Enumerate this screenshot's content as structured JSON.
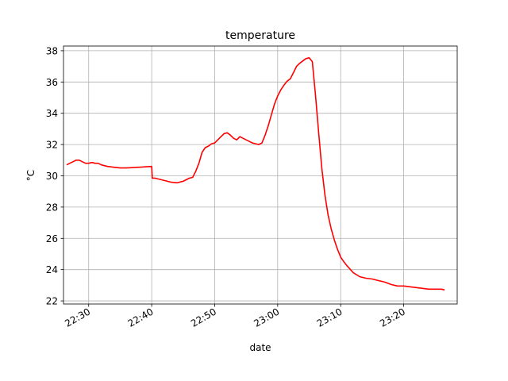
{
  "chart_data": {
    "type": "line",
    "title": "temperature",
    "xlabel": "date",
    "ylabel": "°C",
    "xlim": [
      "22:26:00",
      "23:28:30"
    ],
    "ylim": [
      21.8,
      38.3
    ],
    "x_ticks": [
      "22:30",
      "22:40",
      "22:50",
      "23:00",
      "23:10",
      "23:20"
    ],
    "y_ticks": [
      "22",
      "24",
      "26",
      "28",
      "30",
      "32",
      "34",
      "36",
      "38"
    ],
    "grid": true,
    "series": [
      {
        "color": "#ff0000",
        "x": [
          "22:26:30",
          "22:27:00",
          "22:27:30",
          "22:28:00",
          "22:28:30",
          "22:29:00",
          "22:29:30",
          "22:30:00",
          "22:30:30",
          "22:31:00",
          "22:31:30",
          "22:32:00",
          "22:33:00",
          "22:34:00",
          "22:35:00",
          "22:36:00",
          "22:38:00",
          "22:40:00",
          "22:40:06",
          "22:40:30",
          "22:41:00",
          "22:41:30",
          "22:42:00",
          "22:43:00",
          "22:44:00",
          "22:45:00",
          "22:46:00",
          "22:46:30",
          "22:47:00",
          "22:47:30",
          "22:48:00",
          "22:48:30",
          "22:49:00",
          "22:49:30",
          "22:50:00",
          "22:50:30",
          "22:51:00",
          "22:51:30",
          "22:52:00",
          "22:52:30",
          "22:53:00",
          "22:53:30",
          "22:54:00",
          "22:54:30",
          "22:55:00",
          "22:55:30",
          "22:56:00",
          "22:56:30",
          "22:57:00",
          "22:57:30",
          "22:58:00",
          "22:58:30",
          "22:59:00",
          "22:59:30",
          "23:00:00",
          "23:00:30",
          "23:01:00",
          "23:01:30",
          "23:02:00",
          "23:02:30",
          "23:03:00",
          "23:03:30",
          "23:04:00",
          "23:04:30",
          "23:05:00",
          "23:05:30",
          "23:06:00",
          "23:06:30",
          "23:07:00",
          "23:07:30",
          "23:08:00",
          "23:08:30",
          "23:09:00",
          "23:09:30",
          "23:10:00",
          "23:10:30",
          "23:11:00",
          "23:12:00",
          "23:13:00",
          "23:14:00",
          "23:15:00",
          "23:16:00",
          "23:17:00",
          "23:18:00",
          "23:19:00",
          "23:20:00",
          "23:21:00",
          "23:22:00",
          "23:23:00",
          "23:24:00",
          "23:25:00",
          "23:26:00",
          "23:26:30"
        ],
        "values": [
          30.7,
          30.8,
          30.9,
          31.0,
          31.0,
          30.9,
          30.8,
          30.8,
          30.85,
          30.8,
          30.8,
          30.7,
          30.6,
          30.55,
          30.5,
          30.5,
          30.55,
          30.6,
          29.85,
          29.85,
          29.8,
          29.75,
          29.7,
          29.6,
          29.55,
          29.65,
          29.85,
          29.9,
          30.3,
          30.8,
          31.5,
          31.8,
          31.9,
          32.05,
          32.1,
          32.3,
          32.5,
          32.7,
          32.75,
          32.6,
          32.4,
          32.3,
          32.5,
          32.4,
          32.3,
          32.2,
          32.1,
          32.05,
          32.0,
          32.1,
          32.6,
          33.2,
          33.9,
          34.6,
          35.1,
          35.5,
          35.8,
          36.05,
          36.2,
          36.6,
          37.0,
          37.2,
          37.35,
          37.5,
          37.55,
          37.3,
          35.2,
          32.8,
          30.5,
          28.8,
          27.5,
          26.6,
          25.9,
          25.3,
          24.8,
          24.5,
          24.25,
          23.8,
          23.55,
          23.45,
          23.4,
          23.3,
          23.2,
          23.05,
          22.95,
          22.95,
          22.9,
          22.85,
          22.8,
          22.75,
          22.75,
          22.75,
          22.7
        ]
      }
    ]
  }
}
